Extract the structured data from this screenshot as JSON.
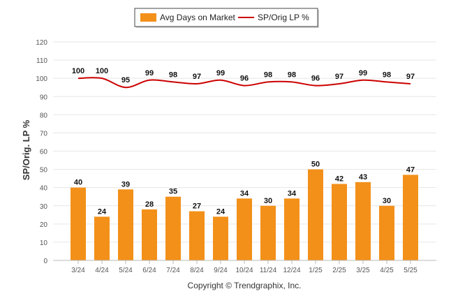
{
  "chart_data": {
    "type": "bar",
    "categories": [
      "3/24",
      "4/24",
      "5/24",
      "6/24",
      "7/24",
      "8/24",
      "9/24",
      "10/24",
      "11/24",
      "12/24",
      "1/25",
      "2/25",
      "3/25",
      "4/25",
      "5/25"
    ],
    "series": [
      {
        "name": "Avg Days on Market",
        "type": "bar",
        "color": "#f39019",
        "values": [
          40,
          24,
          39,
          28,
          35,
          27,
          24,
          34,
          30,
          34,
          50,
          42,
          43,
          30,
          47
        ]
      },
      {
        "name": "SP/Orig LP %",
        "type": "line",
        "color": "#cc0000",
        "values": [
          100,
          100,
          95,
          99,
          98,
          97,
          99,
          96,
          98,
          98,
          96,
          97,
          99,
          98,
          97
        ]
      }
    ],
    "ylabel": "SP/Orig. LP %",
    "ylim": [
      0,
      120
    ],
    "yticks": [
      0,
      10,
      20,
      30,
      40,
      50,
      60,
      70,
      80,
      90,
      100,
      110,
      120
    ],
    "grid": true,
    "legend_position": "top-center",
    "footer": "Copyright © Trendgraphix, Inc."
  }
}
